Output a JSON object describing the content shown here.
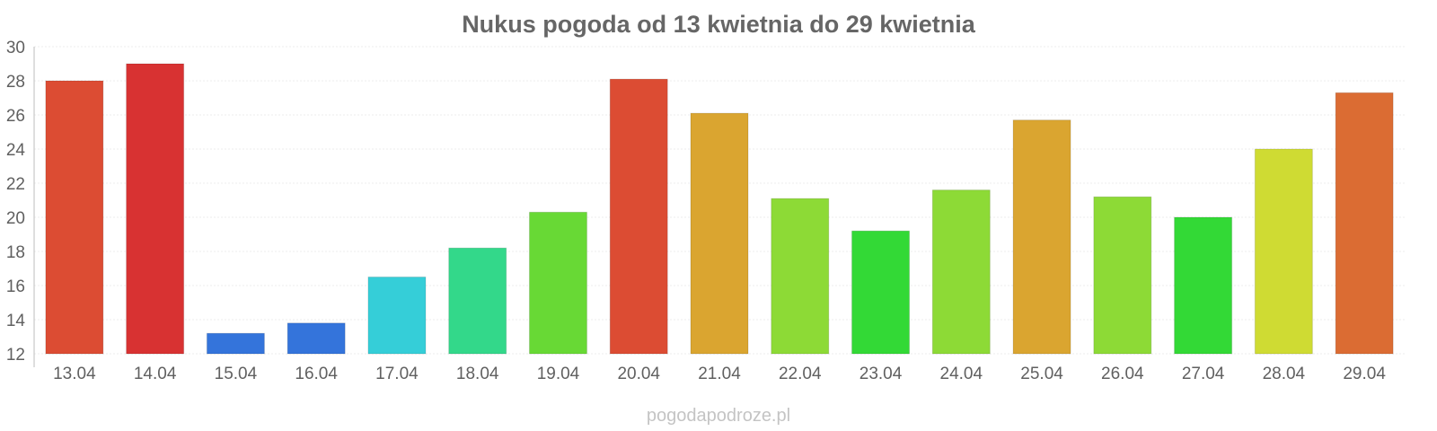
{
  "chart_data": {
    "type": "bar",
    "title": "Nukus pogoda od 13 kwietnia do 29 kwietnia",
    "categories": [
      "13.04",
      "14.04",
      "15.04",
      "16.04",
      "17.04",
      "18.04",
      "19.04",
      "20.04",
      "21.04",
      "22.04",
      "23.04",
      "24.04",
      "25.04",
      "26.04",
      "27.04",
      "28.04",
      "29.04"
    ],
    "values": [
      28.0,
      29.0,
      13.2,
      13.8,
      16.5,
      18.2,
      20.3,
      28.1,
      26.1,
      21.1,
      19.2,
      21.6,
      25.7,
      21.2,
      20.0,
      24.0,
      27.3
    ],
    "colors": [
      "#dc4c33",
      "#d83232",
      "#3474db",
      "#3474db",
      "#35ced8",
      "#33d88a",
      "#68d935",
      "#dc4c33",
      "#daa530",
      "#8dda36",
      "#33d936",
      "#8dda36",
      "#daa530",
      "#8dda36",
      "#33d936",
      "#cfdb33",
      "#db6c33"
    ],
    "ylim": [
      12,
      30
    ],
    "yticks": [
      12,
      14,
      16,
      18,
      20,
      22,
      24,
      26,
      28,
      30
    ],
    "xlabel": "",
    "ylabel": "",
    "grid": true,
    "legend": "none"
  },
  "footer": {
    "source": "pogodapodroze.pl"
  }
}
